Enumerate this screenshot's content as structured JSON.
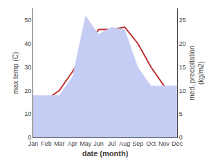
{
  "chart_data": {
    "type": "line",
    "xlabel": "date (month)",
    "ylabel": "max temp (C)",
    "y2label": "med. precipitation\n(kg/m2)",
    "categories": [
      "Jan",
      "Feb",
      "Mar",
      "Apr",
      "May",
      "Jun",
      "Jul",
      "Aug",
      "Sep",
      "Oct",
      "Nov",
      "Dec"
    ],
    "series": [
      {
        "type": "area",
        "axis": "y2",
        "color": "#c5cdf5",
        "values": [
          9,
          9,
          9,
          13,
          26,
          22,
          23.5,
          23,
          15,
          11,
          11,
          11
        ]
      },
      {
        "type": "line",
        "color": "#c03030",
        "values": [
          15,
          16,
          20,
          28,
          37,
          46,
          46,
          47,
          40,
          30,
          22,
          16
        ]
      }
    ],
    "ylim": [
      0,
      55
    ],
    "yticks": [
      0,
      10,
      20,
      30,
      40,
      50
    ],
    "y2lim": [
      0,
      27.5
    ],
    "y2ticks": [
      0,
      5,
      10,
      15,
      20,
      25
    ],
    "grid": false
  }
}
